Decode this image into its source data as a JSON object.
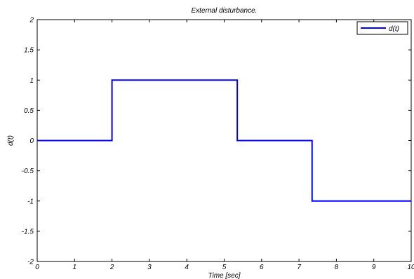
{
  "chart_data": {
    "type": "line",
    "title": "External disturbance.",
    "xlabel": "Time [sec]",
    "ylabel": "d(t)",
    "xlim": [
      0,
      10
    ],
    "ylim": [
      -2,
      2
    ],
    "xticks": [
      0,
      1,
      2,
      3,
      4,
      5,
      6,
      7,
      8,
      9,
      10
    ],
    "yticks": [
      -2,
      -1.5,
      -1,
      -0.5,
      0,
      0.5,
      1,
      1.5,
      2
    ],
    "xtick_labels": [
      "0",
      "1",
      "2",
      "3",
      "4",
      "5",
      "6",
      "7",
      "8",
      "9",
      "10"
    ],
    "ytick_labels": [
      "-2",
      "-1.5",
      "-1",
      "-0.5",
      "0",
      "0.5",
      "1",
      "1.5",
      "2"
    ],
    "grid": false,
    "legend_position": "top-right",
    "series": [
      {
        "name": "d(t)",
        "color": "#0000ff",
        "x": [
          0,
          2,
          2,
          5.35,
          5.35,
          7.35,
          7.35,
          10
        ],
        "y": [
          0,
          0,
          1,
          1,
          0,
          0,
          -1,
          -1
        ]
      }
    ]
  }
}
